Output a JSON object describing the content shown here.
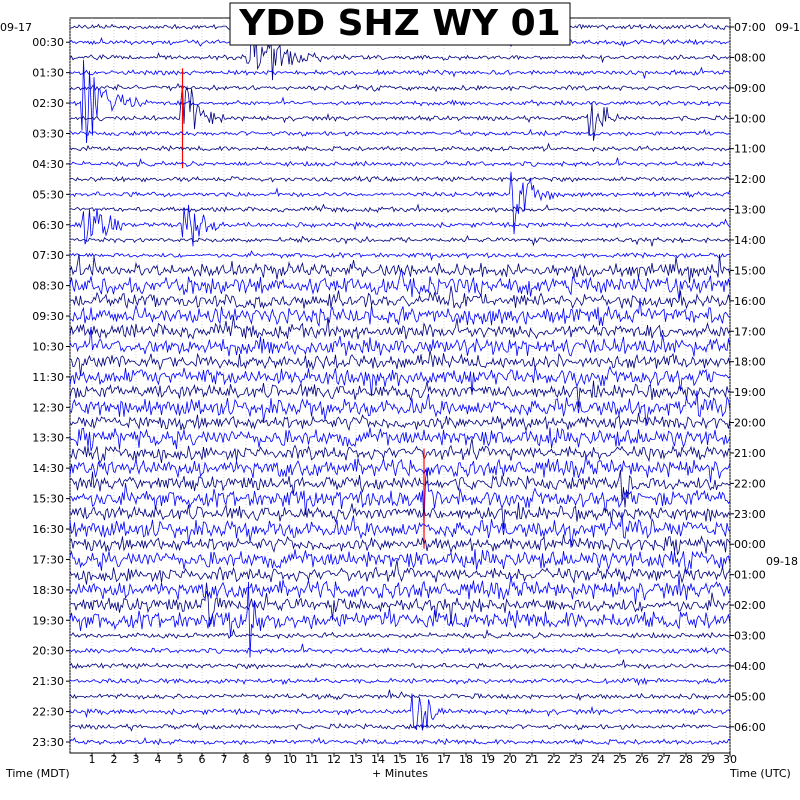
{
  "chart_data": {
    "type": "helicorder",
    "title": "YDD SHZ WY 01",
    "left_date": "09-17",
    "right_date_start": "09-1",
    "right_date_change": "09-18",
    "xlabel": "+ Minutes",
    "left_axis_label": "Time (MDT)",
    "right_axis_label": "Time (UTC)",
    "x_ticks": [
      1,
      2,
      3,
      4,
      5,
      6,
      7,
      8,
      9,
      10,
      11,
      12,
      13,
      14,
      15,
      16,
      17,
      18,
      19,
      20,
      21,
      22,
      23,
      24,
      25,
      26,
      27,
      28,
      29,
      30
    ],
    "xlim": [
      0,
      30
    ],
    "left_times": [
      "00:30",
      "01:30",
      "02:30",
      "03:30",
      "04:30",
      "05:30",
      "06:30",
      "07:30",
      "08:30",
      "09:30",
      "10:30",
      "11:30",
      "12:30",
      "13:30",
      "14:30",
      "15:30",
      "16:30",
      "17:30",
      "18:30",
      "19:30",
      "20:30",
      "21:30",
      "22:30",
      "23:30"
    ],
    "right_times": [
      "07:00",
      "08:00",
      "09:00",
      "10:00",
      "11:00",
      "12:00",
      "13:00",
      "14:00",
      "15:00",
      "16:00",
      "17:00",
      "18:00",
      "19:00",
      "20:00",
      "21:00",
      "22:00",
      "23:00",
      "00:00",
      "01:00",
      "02:00",
      "03:00",
      "04:00",
      "05:00",
      "06:00"
    ],
    "trace_colors": [
      "#000080",
      "#0000ff"
    ],
    "clip_color": "#ff0000",
    "events": [
      {
        "start_min": 8.0,
        "end_min": 11.5,
        "line": 2
      },
      {
        "start_min": 0.5,
        "end_min": 3.5,
        "line": 5
      },
      {
        "start_min": 5.0,
        "end_min": 7.0,
        "line": 6
      },
      {
        "start_min": 23.5,
        "end_min": 25.0,
        "line": 6
      },
      {
        "start_min": 20.0,
        "end_min": 22.0,
        "line": 11
      },
      {
        "start_min": 0.5,
        "end_min": 2.5,
        "line": 13
      },
      {
        "start_min": 5.0,
        "end_min": 7.0,
        "line": 13
      },
      {
        "start_min": 16.0,
        "end_min": 17.0,
        "line": 31
      },
      {
        "start_min": 25.0,
        "end_min": 26.0,
        "line": 30
      },
      {
        "start_min": 6.0,
        "end_min": 7.0,
        "line": 38
      },
      {
        "start_min": 8.0,
        "end_min": 9.0,
        "line": 39
      },
      {
        "start_min": 15.5,
        "end_min": 17.0,
        "line": 45
      }
    ]
  }
}
